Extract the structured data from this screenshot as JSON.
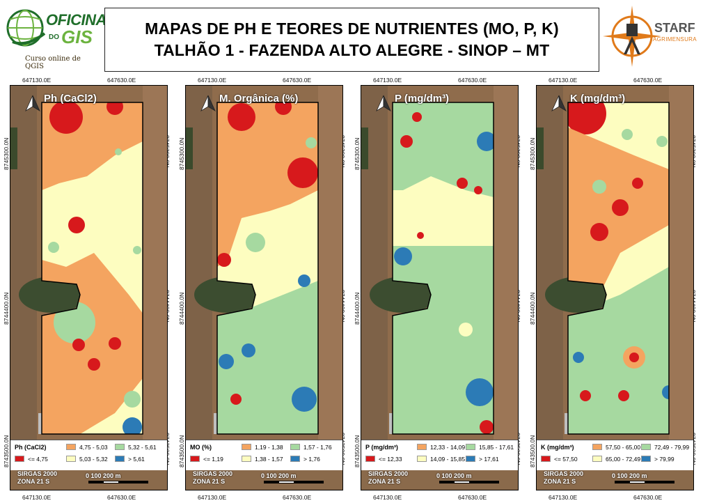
{
  "header": {
    "logo_left": {
      "word1": "OFICINA",
      "word_do": "DO",
      "word2": "GIS",
      "subtitle": "Curso online de QGIS",
      "icon": "globe-icon"
    },
    "title_line1": "MAPAS DE PH E TEORES DE NUTRIENTES (MO, P, K)",
    "title_line2": "TALHÃO 1 - FAZENDA ALTO ALEGRE - SINOP – MT",
    "logo_right": {
      "name": "STARF",
      "subtitle": "AGRIMENSURA",
      "icon": "compass-rose-icon"
    }
  },
  "grid_labels": {
    "x_left": "647130.0E",
    "x_right": "647630.0E",
    "y_top": "8745300.0N",
    "y_mid": "8744400.0N",
    "y_bottom": "8743500.0N"
  },
  "footer": {
    "crs_line1": "SIRGAS 2000",
    "crs_line2": "ZONA 21 S",
    "scale_label": "0   100  200 m"
  },
  "panels": [
    {
      "title": "Ph (CaCl2)",
      "legend_title": "Ph (CaCl2)",
      "classes": [
        "<= 4,75",
        "4,75 - 5,03",
        "5,03 - 5,32",
        "5,32 - 5,61",
        "> 5,61"
      ]
    },
    {
      "title": "M. Orgânica (%)",
      "legend_title": "MO (%)",
      "classes": [
        "<= 1,19",
        "1,19 - 1,38",
        "1,38 - 1,57",
        "1,57 - 1,76",
        "> 1,76"
      ]
    },
    {
      "title": "P (mg/dm³)",
      "legend_title": "P (mg/dm³)",
      "classes": [
        "<= 12,33",
        "12,33 - 14,09",
        "14,09 - 15,85",
        "15,85 - 17,61",
        "> 17,61"
      ]
    },
    {
      "title": "K (mg/dm³)",
      "legend_title": "K (mg/dm³)",
      "classes": [
        "<= 57,50",
        "57,50 - 65,00",
        "65,00 - 72,49",
        "72,49 - 79,99",
        "> 79,99"
      ]
    }
  ],
  "class_colors": [
    "#d7191c",
    "#f4a460",
    "#fdfdc0",
    "#a6d9a0",
    "#2c7bb6"
  ],
  "north_arrow_icon": "north-arrow-icon"
}
